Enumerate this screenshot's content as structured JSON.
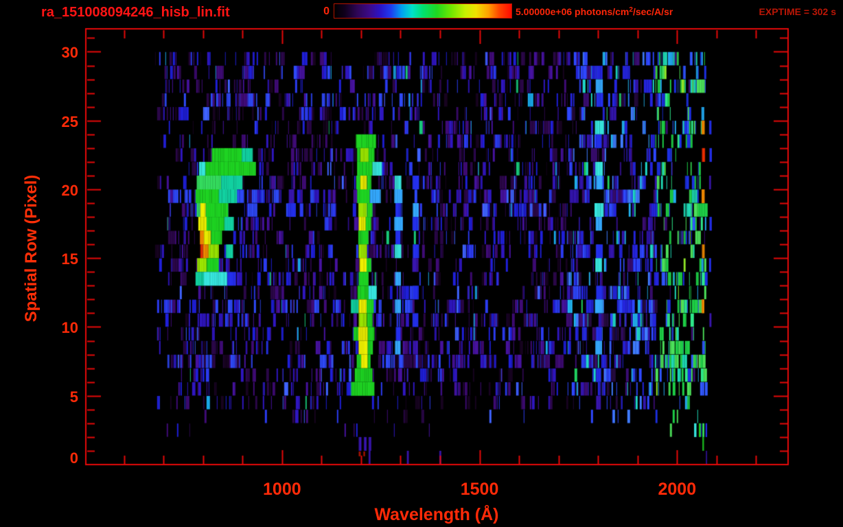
{
  "header": {
    "title": "ra_151008094246_hisb_lin.fit",
    "exptime": "EXPTIME = 302 s",
    "colorbar": {
      "min_label": "0",
      "unit_prefix": "5.00000e+06 photons/cm",
      "unit_sup": "2",
      "unit_suffix": "/sec/A/sr"
    }
  },
  "axes": {
    "x_title": "Wavelength (Å)",
    "y_title": "Spatial Row (Pixel)"
  },
  "chart_data": {
    "type": "heatmap",
    "title": "ra_151008094246_hisb_lin.fit",
    "xlabel": "Wavelength (Å)",
    "ylabel": "Spatial Row (Pixel)",
    "x_range": [
      505,
      2281
    ],
    "y_range": [
      0,
      31.62
    ],
    "x_ticks_major": [
      1000,
      1500,
      2000
    ],
    "x_tick_minor_start": 600,
    "x_tick_minor_end": 2200,
    "x_tick_minor_step": 100,
    "y_ticks_major": [
      0,
      5,
      10,
      15,
      20,
      25,
      30
    ],
    "y_tick_minor_step": 1,
    "grid": false,
    "legend": "none",
    "colorbar_min": 0,
    "colorbar_max": 5000000.0,
    "colorbar_units": "photons/cm2/sec/A/sr",
    "exposure_seconds": 302,
    "colormap_stops": [
      [
        0.0,
        "#000000"
      ],
      [
        0.06,
        "#10001c"
      ],
      [
        0.13,
        "#2e0656"
      ],
      [
        0.2,
        "#3c0a8a"
      ],
      [
        0.26,
        "#2a14c8"
      ],
      [
        0.32,
        "#1e3cf0"
      ],
      [
        0.38,
        "#00a0f0"
      ],
      [
        0.44,
        "#00e0c8"
      ],
      [
        0.5,
        "#00e070"
      ],
      [
        0.58,
        "#20d820"
      ],
      [
        0.66,
        "#70e800"
      ],
      [
        0.74,
        "#c8f000"
      ],
      [
        0.8,
        "#f0e000"
      ],
      [
        0.87,
        "#ffa000"
      ],
      [
        0.93,
        "#ff4600"
      ],
      [
        1.0,
        "#ff0a00"
      ]
    ],
    "feature_colors": {
      "G": "#1ed422",
      "G2": "#36e060",
      "GY": "#9ce800",
      "Y": "#eef000",
      "O": "#f68c00",
      "R": "#ee2e00",
      "R2": "#b01400",
      "C": "#12d2a2",
      "C2": "#38e8e0",
      "LB": "#35aaff",
      "B": "#2430f0",
      "DB": "#3a16b2",
      "P": "#5a10a0"
    },
    "noise": {
      "seed": 151008,
      "data_lambda_min": 675,
      "data_lambda_max": 2071,
      "row_density": [
        0,
        0,
        0.05,
        0.14,
        0.34,
        0.45,
        0.5,
        0.62,
        0.6,
        0.58,
        0.62,
        0.66,
        0.55,
        0.62,
        0.58,
        0.6,
        0.55,
        0.62,
        0.72,
        0.7,
        0.62,
        0.58,
        0.6,
        0.55,
        0.58,
        0.52,
        0.62,
        0.55,
        0.68,
        0.66,
        0
      ],
      "boost_rows": {
        "7": 1.5,
        "11": 1.2,
        "18": 1.3,
        "19": 1.25,
        "26": 1.15,
        "28": 1.2
      },
      "regions": [
        {
          "lambda_max": 1720,
          "mult": 1.0,
          "palette": [
            [
              "#000000",
              30
            ],
            [
              "#16031f",
              8
            ],
            [
              "#2a0747",
              12
            ],
            [
              "#3f0b76",
              12
            ],
            [
              "#46129e",
              8
            ],
            [
              "#2f16c0",
              10
            ],
            [
              "#1f1fd8",
              9
            ],
            [
              "#2b3bf0",
              6
            ],
            [
              "#3f63ff",
              3
            ],
            [
              "#19a8e8",
              1.2
            ],
            [
              "#18c87a",
              0.5
            ]
          ]
        },
        {
          "lambda_max": 1945,
          "mult": 1.25,
          "palette": [
            [
              "#000000",
              20
            ],
            [
              "#240a3c",
              7
            ],
            [
              "#3a0d72",
              9
            ],
            [
              "#3314ac",
              12
            ],
            [
              "#2424dc",
              16
            ],
            [
              "#2e48ff",
              12
            ],
            [
              "#3f7cff",
              7
            ],
            [
              "#22b4f0",
              5
            ],
            [
              "#1fd8c8",
              2.5
            ],
            [
              "#20d060",
              1.5
            ]
          ]
        },
        {
          "lambda_max": 2075,
          "mult": 1.15,
          "palette": [
            [
              "#000000",
              24
            ],
            [
              "#112244",
              2
            ],
            [
              "#1c2fe0",
              8
            ],
            [
              "#3058ff",
              6
            ],
            [
              "#22a8f0",
              5
            ],
            [
              "#1fd8b4",
              7
            ],
            [
              "#1ece46",
              16
            ],
            [
              "#4ce05a",
              10
            ],
            [
              "#2ee88a",
              6
            ],
            [
              "#90e428",
              3
            ],
            [
              "#3a0d72",
              4
            ]
          ]
        }
      ]
    },
    "features": [
      [
        22,
        822,
        898,
        "G"
      ],
      [
        22,
        898,
        926,
        "C"
      ],
      [
        21,
        806,
        934,
        "G"
      ],
      [
        21,
        790,
        806,
        "C2"
      ],
      [
        20,
        784,
        846,
        "G2"
      ],
      [
        20,
        846,
        900,
        "C"
      ],
      [
        19,
        781,
        840,
        "G"
      ],
      [
        19,
        840,
        886,
        "C"
      ],
      [
        18,
        784,
        793,
        "G2"
      ],
      [
        18,
        793,
        807,
        "Y"
      ],
      [
        18,
        807,
        864,
        "G"
      ],
      [
        17,
        788,
        809,
        "Y"
      ],
      [
        17,
        809,
        854,
        "G"
      ],
      [
        17,
        854,
        878,
        "C"
      ],
      [
        16,
        792,
        802,
        "O"
      ],
      [
        16,
        802,
        820,
        "Y"
      ],
      [
        16,
        820,
        848,
        "G"
      ],
      [
        15,
        793,
        800,
        "R"
      ],
      [
        15,
        800,
        814,
        "O"
      ],
      [
        15,
        814,
        840,
        "GY"
      ],
      [
        15,
        858,
        876,
        "C"
      ],
      [
        14,
        785,
        809,
        "GY"
      ],
      [
        14,
        809,
        840,
        "G"
      ],
      [
        13,
        781,
        802,
        "C"
      ],
      [
        13,
        802,
        861,
        "C2"
      ],
      [
        13,
        861,
        883,
        "B"
      ],
      [
        23,
        1187,
        1238,
        "G"
      ],
      [
        22,
        1190,
        1198,
        "G"
      ],
      [
        22,
        1198,
        1219,
        "GY"
      ],
      [
        22,
        1219,
        1234,
        "G"
      ],
      [
        21,
        1190,
        1229,
        "G"
      ],
      [
        21,
        1229,
        1253,
        "C2"
      ],
      [
        20,
        1188,
        1198,
        "G"
      ],
      [
        20,
        1198,
        1215,
        "Y"
      ],
      [
        20,
        1215,
        1226,
        "G"
      ],
      [
        19,
        1190,
        1222,
        "G"
      ],
      [
        19,
        1222,
        1250,
        "LB"
      ],
      [
        18,
        1193,
        1215,
        "GY"
      ],
      [
        18,
        1215,
        1229,
        "G"
      ],
      [
        17,
        1194,
        1212,
        "Y"
      ],
      [
        17,
        1212,
        1226,
        "G"
      ],
      [
        16,
        1193,
        1219,
        "G"
      ],
      [
        15,
        1194,
        1215,
        "GY"
      ],
      [
        14,
        1196,
        1214,
        "Y"
      ],
      [
        14,
        1214,
        1226,
        "G"
      ],
      [
        13,
        1194,
        1219,
        "G"
      ],
      [
        12,
        1191,
        1219,
        "G"
      ],
      [
        12,
        1219,
        1240,
        "C2"
      ],
      [
        11,
        1174,
        1194,
        "C"
      ],
      [
        11,
        1194,
        1214,
        "Y"
      ],
      [
        11,
        1214,
        1232,
        "G"
      ],
      [
        10,
        1194,
        1215,
        "GY"
      ],
      [
        10,
        1215,
        1229,
        "G"
      ],
      [
        9,
        1181,
        1193,
        "G"
      ],
      [
        9,
        1193,
        1217,
        "Y"
      ],
      [
        9,
        1217,
        1234,
        "G"
      ],
      [
        8,
        1194,
        1217,
        "Y"
      ],
      [
        8,
        1217,
        1230,
        "G"
      ],
      [
        7,
        1189,
        1200,
        "G"
      ],
      [
        7,
        1200,
        1217,
        "Y"
      ],
      [
        7,
        1217,
        1224,
        "G"
      ],
      [
        6,
        1184,
        1229,
        "G"
      ],
      [
        5,
        1175,
        1234,
        "G"
      ],
      [
        20,
        1285,
        1302,
        "C2"
      ],
      [
        19,
        1284,
        1305,
        "LB"
      ],
      [
        18,
        1287,
        1301,
        "B"
      ],
      [
        17,
        1284,
        1306,
        "LB"
      ],
      [
        16,
        1287,
        1300,
        "B"
      ],
      [
        15,
        1285,
        1302,
        "C2"
      ],
      [
        13,
        1286,
        1301,
        "LB"
      ],
      [
        11,
        1286,
        1301,
        "LB"
      ],
      [
        9,
        1288,
        1300,
        "B"
      ],
      [
        8,
        1286,
        1300,
        "LB"
      ],
      [
        20,
        1330,
        1347,
        "B"
      ],
      [
        18,
        1331,
        1346,
        "LB"
      ],
      [
        17,
        1330,
        1345,
        "B"
      ],
      [
        15,
        1331,
        1347,
        "B"
      ],
      [
        14,
        1330,
        1344,
        "DB"
      ],
      [
        12,
        1331,
        1346,
        "B"
      ],
      [
        10,
        1330,
        1345,
        "B"
      ],
      [
        8,
        1331,
        1344,
        "DB"
      ],
      [
        27,
        1794,
        1812,
        "LB"
      ],
      [
        26,
        1796,
        1813,
        "B"
      ],
      [
        24,
        1792,
        1815,
        "C2"
      ],
      [
        23,
        1795,
        1809,
        "B"
      ],
      [
        21,
        1793,
        1812,
        "C2"
      ],
      [
        20,
        1795,
        1811,
        "LB"
      ],
      [
        18,
        1791,
        1814,
        "C2"
      ],
      [
        17,
        1794,
        1810,
        "LB"
      ],
      [
        15,
        1795,
        1812,
        "B"
      ],
      [
        14,
        1793,
        1810,
        "C2"
      ],
      [
        12,
        1795,
        1812,
        "B"
      ],
      [
        11,
        1792,
        1813,
        "LB"
      ],
      [
        9,
        1795,
        1810,
        "B"
      ],
      [
        8,
        1793,
        1810,
        "LB"
      ],
      [
        6,
        1795,
        1808,
        "B"
      ],
      [
        4,
        1795,
        1807,
        "DB"
      ],
      [
        24,
        2062,
        2070,
        "O"
      ],
      [
        22,
        2063,
        2071,
        "R"
      ],
      [
        19,
        2062,
        2070,
        "O"
      ],
      [
        15,
        2063,
        2070,
        "O"
      ],
      [
        11,
        2062,
        2069,
        "O"
      ],
      [
        24,
        2081,
        2087,
        "B"
      ],
      [
        22,
        2082,
        2088,
        "B"
      ],
      [
        20,
        2081,
        2086,
        "DB"
      ],
      [
        17,
        2082,
        2088,
        "B"
      ],
      [
        14,
        2081,
        2086,
        "B"
      ],
      [
        10,
        2082,
        2087,
        "DB"
      ],
      [
        18,
        1014,
        1035,
        "B"
      ],
      [
        19,
        1017,
        1031,
        "DB"
      ],
      [
        2,
        2043,
        2049,
        "C2"
      ],
      [
        2,
        2055,
        2060,
        "G"
      ],
      [
        2,
        2064,
        2069,
        "G2"
      ],
      [
        2,
        2072,
        2076,
        "B"
      ],
      [
        1,
        2064,
        2068,
        "G"
      ],
      [
        0,
        2073,
        2076,
        "DB"
      ],
      [
        1,
        1194,
        1201,
        "DB"
      ],
      [
        1,
        1207,
        1214,
        "DB"
      ],
      [
        1,
        1219,
        1226,
        "DB"
      ],
      [
        0,
        1194,
        1199,
        "R2"
      ],
      [
        0,
        1206,
        1210,
        "R2"
      ],
      [
        0,
        1219,
        1224,
        "DB"
      ],
      [
        0,
        1316,
        1321,
        "DB"
      ],
      [
        0,
        1398,
        1403,
        "DB"
      ]
    ]
  }
}
